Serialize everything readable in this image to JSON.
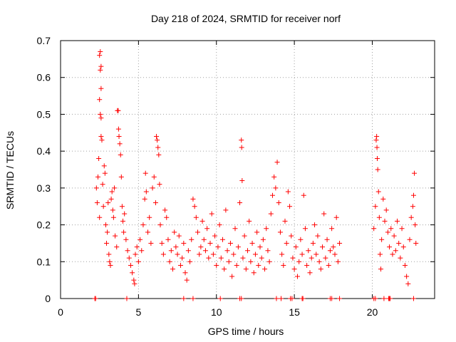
{
  "chart_data": {
    "type": "scatter",
    "title": "Day 218 of 2024, SRMTID for receiver norf",
    "xlabel": "GPS time / hours",
    "ylabel": "SRMTID / TECUs",
    "xlim": [
      0,
      24
    ],
    "ylim": [
      0,
      0.7
    ],
    "x_ticks": [
      0,
      5,
      10,
      15,
      20
    ],
    "y_ticks": [
      0,
      0.1,
      0.2,
      0.3,
      0.4,
      0.5,
      0.6,
      0.7
    ],
    "x_tick_labels": [
      "0",
      "5",
      "10",
      "15",
      "20"
    ],
    "y_tick_labels": [
      "0",
      "0.1",
      "0.2",
      "0.3",
      "0.4",
      "0.5",
      "0.6",
      "0.7"
    ],
    "grid": true,
    "marker": "+",
    "color": "#ff0000",
    "series": [
      {
        "name": "SRMTID",
        "points": [
          [
            2.3,
            0.3
          ],
          [
            2.35,
            0.26
          ],
          [
            2.4,
            0.33
          ],
          [
            2.45,
            0.38
          ],
          [
            2.5,
            0.22
          ],
          [
            2.5,
            0.66
          ],
          [
            2.55,
            0.67
          ],
          [
            2.55,
            0.62
          ],
          [
            2.6,
            0.63
          ],
          [
            2.6,
            0.57
          ],
          [
            2.5,
            0.54
          ],
          [
            2.55,
            0.5
          ],
          [
            2.6,
            0.49
          ],
          [
            2.6,
            0.44
          ],
          [
            2.65,
            0.43
          ],
          [
            2.7,
            0.31
          ],
          [
            2.75,
            0.25
          ],
          [
            2.8,
            0.36
          ],
          [
            2.85,
            0.34
          ],
          [
            2.9,
            0.2
          ],
          [
            2.95,
            0.15
          ],
          [
            3.0,
            0.18
          ],
          [
            3.05,
            0.26
          ],
          [
            3.1,
            0.12
          ],
          [
            3.15,
            0.1
          ],
          [
            3.2,
            0.09
          ],
          [
            3.25,
            0.27
          ],
          [
            3.3,
            0.29
          ],
          [
            3.35,
            0.24
          ],
          [
            3.4,
            0.22
          ],
          [
            3.45,
            0.3
          ],
          [
            3.5,
            0.17
          ],
          [
            3.6,
            0.14
          ],
          [
            3.65,
            0.51
          ],
          [
            3.7,
            0.51
          ],
          [
            3.72,
            0.46
          ],
          [
            3.75,
            0.44
          ],
          [
            3.8,
            0.42
          ],
          [
            3.85,
            0.39
          ],
          [
            3.9,
            0.33
          ],
          [
            3.95,
            0.25
          ],
          [
            4.0,
            0.21
          ],
          [
            4.05,
            0.18
          ],
          [
            4.1,
            0.23
          ],
          [
            4.2,
            0.16
          ],
          [
            4.3,
            0.13
          ],
          [
            4.4,
            0.11
          ],
          [
            4.5,
            0.09
          ],
          [
            4.6,
            0.07
          ],
          [
            4.7,
            0.05
          ],
          [
            4.75,
            0.04
          ],
          [
            4.8,
            0.12
          ],
          [
            4.9,
            0.14
          ],
          [
            5.0,
            0.1
          ],
          [
            5.1,
            0.16
          ],
          [
            5.2,
            0.13
          ],
          [
            5.3,
            0.2
          ],
          [
            5.4,
            0.27
          ],
          [
            5.45,
            0.34
          ],
          [
            5.5,
            0.29
          ],
          [
            5.6,
            0.18
          ],
          [
            5.7,
            0.22
          ],
          [
            5.8,
            0.15
          ],
          [
            5.9,
            0.3
          ],
          [
            6.0,
            0.33
          ],
          [
            6.1,
            0.26
          ],
          [
            6.15,
            0.44
          ],
          [
            6.2,
            0.43
          ],
          [
            6.25,
            0.41
          ],
          [
            6.3,
            0.39
          ],
          [
            6.35,
            0.31
          ],
          [
            6.4,
            0.2
          ],
          [
            6.5,
            0.15
          ],
          [
            6.6,
            0.12
          ],
          [
            6.7,
            0.24
          ],
          [
            6.8,
            0.22
          ],
          [
            6.9,
            0.16
          ],
          [
            7.0,
            0.1
          ],
          [
            7.1,
            0.13
          ],
          [
            7.2,
            0.08
          ],
          [
            7.3,
            0.18
          ],
          [
            7.4,
            0.14
          ],
          [
            7.5,
            0.12
          ],
          [
            7.6,
            0.17
          ],
          [
            7.7,
            0.09
          ],
          [
            7.8,
            0.11
          ],
          [
            7.9,
            0.15
          ],
          [
            8.0,
            0.07
          ],
          [
            8.1,
            0.05
          ],
          [
            8.2,
            0.13
          ],
          [
            8.3,
            0.1
          ],
          [
            8.4,
            0.16
          ],
          [
            8.5,
            0.27
          ],
          [
            8.6,
            0.25
          ],
          [
            8.7,
            0.22
          ],
          [
            8.8,
            0.18
          ],
          [
            8.9,
            0.12
          ],
          [
            9.0,
            0.14
          ],
          [
            9.1,
            0.21
          ],
          [
            9.2,
            0.16
          ],
          [
            9.3,
            0.13
          ],
          [
            9.4,
            0.19
          ],
          [
            9.5,
            0.11
          ],
          [
            9.6,
            0.15
          ],
          [
            9.7,
            0.23
          ],
          [
            9.8,
            0.12
          ],
          [
            9.9,
            0.17
          ],
          [
            10.0,
            0.09
          ],
          [
            10.1,
            0.14
          ],
          [
            10.2,
            0.2
          ],
          [
            10.3,
            0.11
          ],
          [
            10.4,
            0.16
          ],
          [
            10.5,
            0.08
          ],
          [
            10.6,
            0.24
          ],
          [
            10.7,
            0.13
          ],
          [
            10.8,
            0.1
          ],
          [
            10.9,
            0.15
          ],
          [
            11.0,
            0.06
          ],
          [
            11.1,
            0.12
          ],
          [
            11.2,
            0.19
          ],
          [
            11.3,
            0.09
          ],
          [
            11.4,
            0.14
          ],
          [
            11.5,
            0.26
          ],
          [
            11.6,
            0.43
          ],
          [
            11.62,
            0.41
          ],
          [
            11.65,
            0.32
          ],
          [
            11.7,
            0.11
          ],
          [
            11.8,
            0.17
          ],
          [
            11.9,
            0.08
          ],
          [
            12.0,
            0.13
          ],
          [
            12.1,
            0.21
          ],
          [
            12.2,
            0.1
          ],
          [
            12.3,
            0.15
          ],
          [
            12.4,
            0.07
          ],
          [
            12.5,
            0.12
          ],
          [
            12.6,
            0.18
          ],
          [
            12.7,
            0.09
          ],
          [
            12.8,
            0.14
          ],
          [
            12.9,
            0.11
          ],
          [
            13.0,
            0.16
          ],
          [
            13.1,
            0.08
          ],
          [
            13.2,
            0.19
          ],
          [
            13.3,
            0.13
          ],
          [
            13.4,
            0.1
          ],
          [
            13.5,
            0.23
          ],
          [
            13.6,
            0.28
          ],
          [
            13.7,
            0.33
          ],
          [
            13.8,
            0.3
          ],
          [
            13.9,
            0.37
          ],
          [
            14.0,
            0.26
          ],
          [
            14.1,
            0.18
          ],
          [
            14.2,
            0.12
          ],
          [
            14.3,
            0.09
          ],
          [
            14.4,
            0.21
          ],
          [
            14.5,
            0.15
          ],
          [
            14.6,
            0.29
          ],
          [
            14.7,
            0.25
          ],
          [
            14.8,
            0.17
          ],
          [
            14.9,
            0.11
          ],
          [
            15.0,
            0.08
          ],
          [
            15.1,
            0.14
          ],
          [
            15.2,
            0.06
          ],
          [
            15.3,
            0.1
          ],
          [
            15.4,
            0.16
          ],
          [
            15.5,
            0.12
          ],
          [
            15.6,
            0.28
          ],
          [
            15.7,
            0.19
          ],
          [
            15.8,
            0.09
          ],
          [
            15.9,
            0.13
          ],
          [
            16.0,
            0.07
          ],
          [
            16.1,
            0.11
          ],
          [
            16.2,
            0.15
          ],
          [
            16.3,
            0.2
          ],
          [
            16.4,
            0.12
          ],
          [
            16.5,
            0.17
          ],
          [
            16.6,
            0.1
          ],
          [
            16.7,
            0.08
          ],
          [
            16.8,
            0.14
          ],
          [
            16.9,
            0.23
          ],
          [
            17.0,
            0.11
          ],
          [
            17.1,
            0.16
          ],
          [
            17.2,
            0.09
          ],
          [
            17.3,
            0.13
          ],
          [
            17.4,
            0.19
          ],
          [
            17.5,
            0.14
          ],
          [
            17.6,
            0.12
          ],
          [
            17.7,
            0.22
          ],
          [
            17.8,
            0.1
          ],
          [
            17.9,
            0.15
          ],
          [
            20.1,
            0.19
          ],
          [
            20.2,
            0.25
          ],
          [
            20.25,
            0.43
          ],
          [
            20.28,
            0.44
          ],
          [
            20.3,
            0.41
          ],
          [
            20.32,
            0.38
          ],
          [
            20.35,
            0.35
          ],
          [
            20.4,
            0.29
          ],
          [
            20.45,
            0.22
          ],
          [
            20.5,
            0.12
          ],
          [
            20.55,
            0.08
          ],
          [
            20.6,
            0.16
          ],
          [
            20.7,
            0.27
          ],
          [
            20.8,
            0.21
          ],
          [
            20.9,
            0.24
          ],
          [
            21.0,
            0.18
          ],
          [
            21.1,
            0.14
          ],
          [
            21.2,
            0.19
          ],
          [
            21.3,
            0.12
          ],
          [
            21.4,
            0.17
          ],
          [
            21.5,
            0.13
          ],
          [
            21.6,
            0.21
          ],
          [
            21.7,
            0.15
          ],
          [
            21.8,
            0.11
          ],
          [
            21.9,
            0.19
          ],
          [
            22.0,
            0.14
          ],
          [
            22.1,
            0.09
          ],
          [
            22.2,
            0.06
          ],
          [
            22.3,
            0.04
          ],
          [
            22.4,
            0.16
          ],
          [
            22.5,
            0.22
          ],
          [
            22.6,
            0.25
          ],
          [
            22.65,
            0.28
          ],
          [
            22.7,
            0.34
          ],
          [
            22.75,
            0.2
          ],
          [
            22.8,
            0.15
          ]
        ],
        "zero_points_x": [
          2.2,
          2.25,
          4.25,
          7.9,
          8.5,
          10.25,
          11.5,
          11.6,
          13.85,
          14.15,
          14.75,
          14.85,
          15.5,
          15.55,
          17.3,
          17.4,
          17.9,
          20.1,
          20.2,
          20.75,
          21.05,
          21.1,
          21.15,
          22.65
        ]
      }
    ]
  }
}
